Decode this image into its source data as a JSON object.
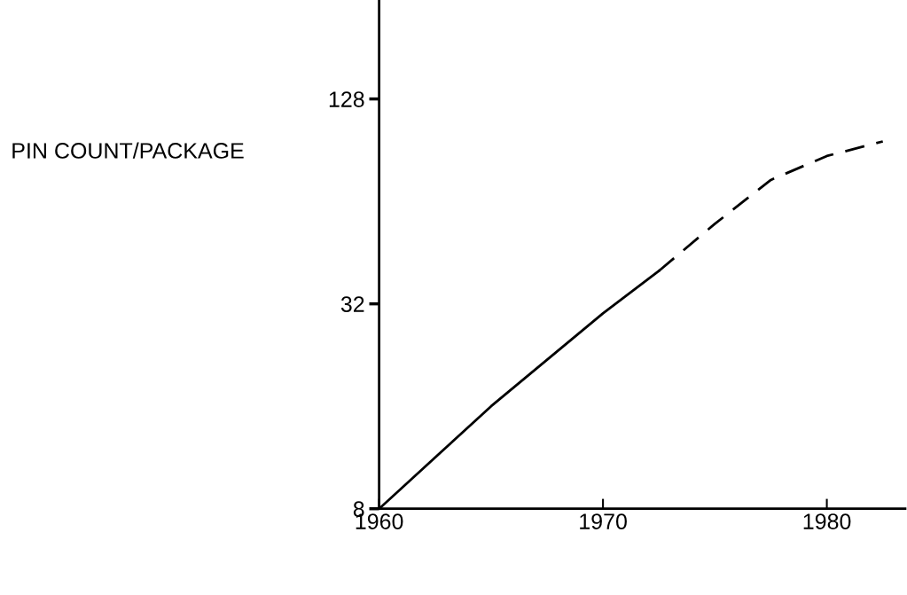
{
  "chart_data": {
    "type": "line",
    "ylabel": "PIN COUNT/PACKAGE",
    "log": "y",
    "xlim": [
      1960,
      1983.5
    ],
    "ylim": [
      8,
      250
    ],
    "xticks": [
      1960,
      1970,
      1980
    ],
    "yticks": [
      8,
      32,
      128
    ],
    "grid": false,
    "legend": false,
    "marker": "none",
    "series": [
      {
        "color": "#000000",
        "line_style": "solid",
        "x": [
          1960,
          1965,
          1970,
          1972.5
        ],
        "values": [
          8,
          16,
          30,
          40
        ]
      },
      {
        "color": "#000000",
        "line_style": "dashed",
        "x": [
          1972.5,
          1975,
          1977.5,
          1980,
          1982.5
        ],
        "values": [
          40,
          55,
          74,
          87,
          96
        ]
      }
    ]
  }
}
